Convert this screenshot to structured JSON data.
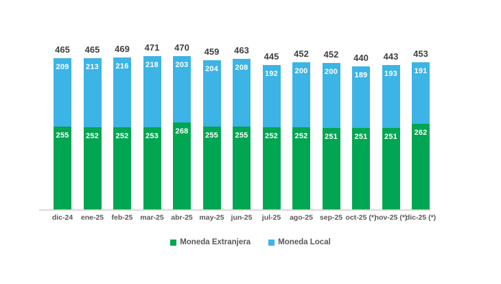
{
  "chart_data": {
    "type": "bar",
    "stacked": true,
    "title": "",
    "categories": [
      "dic-24",
      "ene-25",
      "feb-25",
      "mar-25",
      "abr-25",
      "may-25",
      "jun-25",
      "jul-25",
      "ago-25",
      "sep-25",
      "oct-25 (*)",
      "nov-25 (*)",
      "dic-25 (*)"
    ],
    "series": [
      {
        "name": "Moneda Extranjera",
        "color": "#00a651",
        "values": [
          255,
          252,
          252,
          253,
          268,
          255,
          255,
          252,
          252,
          251,
          251,
          251,
          262
        ]
      },
      {
        "name": "Moneda Local",
        "color": "#3cb4e5",
        "values": [
          209,
          213,
          216,
          218,
          203,
          204,
          208,
          192,
          200,
          200,
          189,
          193,
          191
        ]
      }
    ],
    "totals": [
      465,
      465,
      469,
      471,
      470,
      459,
      463,
      445,
      452,
      452,
      440,
      443,
      453
    ],
    "xlabel": "",
    "ylabel": "",
    "ylim": [
      0,
      500
    ],
    "grid": false,
    "legend_position": "bottom",
    "colors": {
      "axis_line": "#d9d9d9",
      "total_label": "#3f3f3f",
      "value_label": "#ffffff",
      "tick_label": "#595959",
      "background": "#ffffff"
    }
  }
}
